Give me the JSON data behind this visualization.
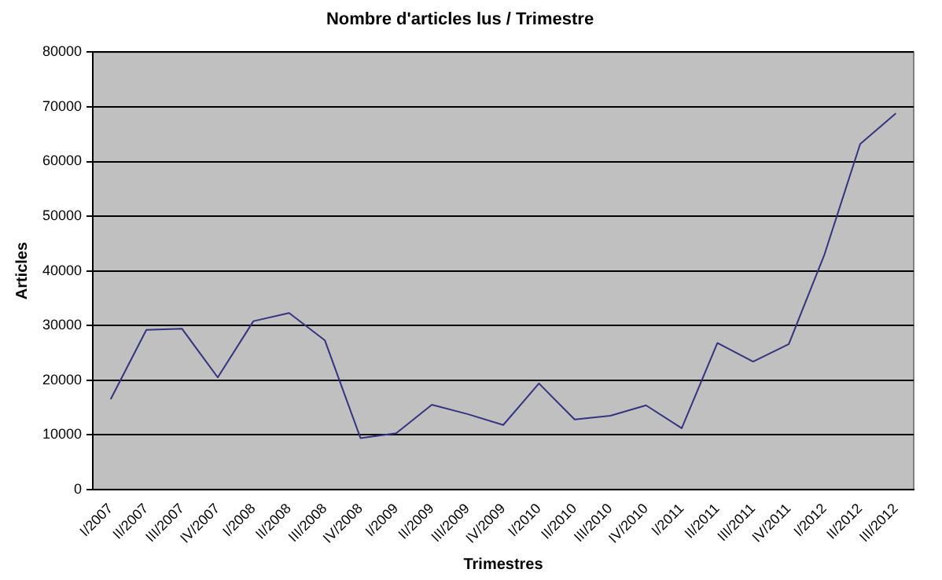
{
  "chart_data": {
    "type": "line",
    "title": "Nombre d'articles lus / Trimestre",
    "xlabel": "Trimestres",
    "ylabel": "Articles",
    "categories": [
      "I/2007",
      "II/2007",
      "III/2007",
      "IV/2007",
      "I/2008",
      "II/2008",
      "III/2008",
      "IV/2008",
      "I/2009",
      "II/2009",
      "III/2009",
      "IV/2009",
      "I/2010",
      "II/2010",
      "III/2010",
      "IV/2010",
      "I/2011",
      "II/2011",
      "III/2011",
      "IV/2011",
      "I/2012",
      "II/2012",
      "III/2012"
    ],
    "series": [
      {
        "color": "#333380",
        "values": [
          16500,
          29200,
          29400,
          20500,
          30800,
          32300,
          27300,
          9400,
          10300,
          15500,
          13800,
          11800,
          19400,
          12800,
          13500,
          15400,
          11200,
          26800,
          23400,
          26600,
          43000,
          63200,
          68800
        ]
      }
    ],
    "ylim": [
      0,
      80000
    ],
    "yticks": [
      0,
      10000,
      20000,
      30000,
      40000,
      50000,
      60000,
      70000,
      80000
    ],
    "grid": "y",
    "legend": false,
    "marker": "none",
    "line_style": "solid"
  }
}
